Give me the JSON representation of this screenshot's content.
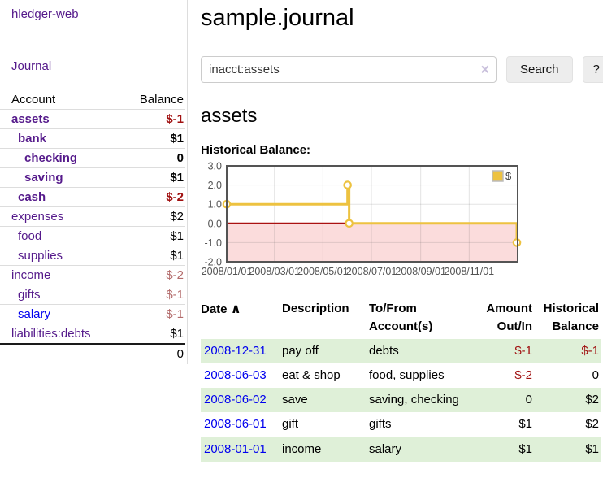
{
  "colors": {
    "link_purple": "#551a8b",
    "link_blue": "#0000ee",
    "negative_dark": "#a01010",
    "negative_light": "#b36b6b",
    "row_green": "#dff0d8"
  },
  "sidebar": {
    "brand": "hledger-web",
    "nav_journal": "Journal",
    "accounts_table": {
      "headers": {
        "account": "Account",
        "balance": "Balance"
      },
      "rows": [
        {
          "account": "assets",
          "indent": 1,
          "in_query": true,
          "balance": "$-1",
          "negative": true
        },
        {
          "account": "bank",
          "indent": 2,
          "in_query": true,
          "balance": "$1",
          "negative": false
        },
        {
          "account": "checking",
          "indent": 3,
          "in_query": true,
          "balance": "0",
          "negative": false
        },
        {
          "account": "saving",
          "indent": 3,
          "in_query": true,
          "balance": "$1",
          "negative": false
        },
        {
          "account": "cash",
          "indent": 2,
          "in_query": true,
          "balance": "$-2",
          "negative": true
        },
        {
          "account": "expenses",
          "indent": 1,
          "in_query": false,
          "balance": "$2",
          "negative": false
        },
        {
          "account": "food",
          "indent": 2,
          "in_query": false,
          "balance": "$1",
          "negative": false
        },
        {
          "account": "supplies",
          "indent": 2,
          "in_query": false,
          "balance": "$1",
          "negative": false
        },
        {
          "account": "income",
          "indent": 1,
          "in_query": false,
          "balance": "$-2",
          "negative": true
        },
        {
          "account": "gifts",
          "indent": 2,
          "in_query": false,
          "balance": "$-1",
          "negative": true
        },
        {
          "account": "salary",
          "indent": 2,
          "in_query": false,
          "balance": "$-1",
          "negative": true,
          "unvisited": true
        },
        {
          "account": "liabilities:debts",
          "indent": 1,
          "in_query": false,
          "balance": "$1",
          "negative": false
        }
      ],
      "total": "0"
    }
  },
  "header": {
    "title": "sample.journal"
  },
  "search": {
    "query": "inacct:assets",
    "clear_icon": "×",
    "search_button": "Search",
    "help_button": "?"
  },
  "account_heading": "assets",
  "chart_data": {
    "type": "line",
    "step": true,
    "title": "Historical Balance:",
    "x_range": [
      "2008-01-01",
      "2009-01-01"
    ],
    "y_range": [
      -2,
      3
    ],
    "x_ticks": [
      {
        "date": "2008-01-01",
        "label": "2008/01/01"
      },
      {
        "date": "2008-03-01",
        "label": "2008/03/01"
      },
      {
        "date": "2008-05-01",
        "label": "2008/05/01"
      },
      {
        "date": "2008-07-01",
        "label": "2008/07/01"
      },
      {
        "date": "2008-09-01",
        "label": "2008/09/01"
      },
      {
        "date": "2008-11-01",
        "label": "2008/11/01"
      }
    ],
    "y_ticks": [
      {
        "value": 3,
        "label": "3.0"
      },
      {
        "value": 2,
        "label": "2.0"
      },
      {
        "value": 1,
        "label": "1.0"
      },
      {
        "value": 0,
        "label": "0.0"
      },
      {
        "value": -1,
        "label": "-1.0"
      },
      {
        "value": -2,
        "label": "-2.0"
      }
    ],
    "series": [
      {
        "name": "$",
        "color": "#edc240",
        "points": [
          {
            "x": "2008-01-01",
            "y": 1
          },
          {
            "x": "2008-06-01",
            "y": 2
          },
          {
            "x": "2008-06-03",
            "y": 0
          },
          {
            "x": "2008-12-31",
            "y": -1
          }
        ]
      }
    ],
    "negative_region_fill": "#fbdcdc",
    "zero_line_color": "#aa1111",
    "grid": true,
    "legend_position": "top-right"
  },
  "register": {
    "headers": {
      "date": "Date",
      "sort_icon": "∧",
      "description": "Description",
      "accounts": "To/From Account(s)",
      "amount": "Amount Out/In",
      "balance": "Historical Balance"
    },
    "rows": [
      {
        "date": "2008-12-31",
        "description": "pay off",
        "accounts": "debts",
        "amount": "$-1",
        "amount_negative": true,
        "balance": "$-1",
        "balance_negative": true
      },
      {
        "date": "2008-06-03",
        "description": "eat & shop",
        "accounts": "food, supplies",
        "amount": "$-2",
        "amount_negative": true,
        "balance": "0",
        "balance_negative": false
      },
      {
        "date": "2008-06-02",
        "description": "save",
        "accounts": "saving, checking",
        "amount": "0",
        "amount_negative": false,
        "balance": "$2",
        "balance_negative": false
      },
      {
        "date": "2008-06-01",
        "description": "gift",
        "accounts": "gifts",
        "amount": "$1",
        "amount_negative": false,
        "balance": "$2",
        "balance_negative": false
      },
      {
        "date": "2008-01-01",
        "description": "income",
        "accounts": "salary",
        "amount": "$1",
        "amount_negative": false,
        "balance": "$1",
        "balance_negative": false
      }
    ]
  }
}
